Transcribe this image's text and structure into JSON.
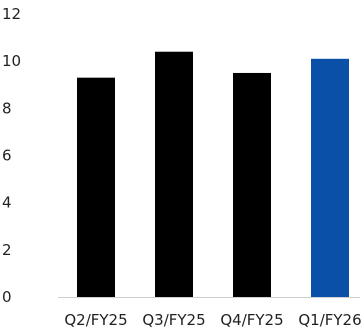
{
  "chart_data": {
    "type": "bar",
    "categories": [
      "Q2/FY25",
      "Q3/FY25",
      "Q4/FY25",
      "Q1/FY26"
    ],
    "values": [
      9.3,
      10.4,
      9.5,
      10.1
    ],
    "bar_colors": [
      "#000000",
      "#000000",
      "#000000",
      "#0a4fa8"
    ],
    "ylim": [
      0,
      12
    ],
    "yticks": [
      0,
      2,
      4,
      6,
      8,
      10,
      12
    ],
    "grid": false,
    "title": "",
    "xlabel": "",
    "ylabel": ""
  }
}
